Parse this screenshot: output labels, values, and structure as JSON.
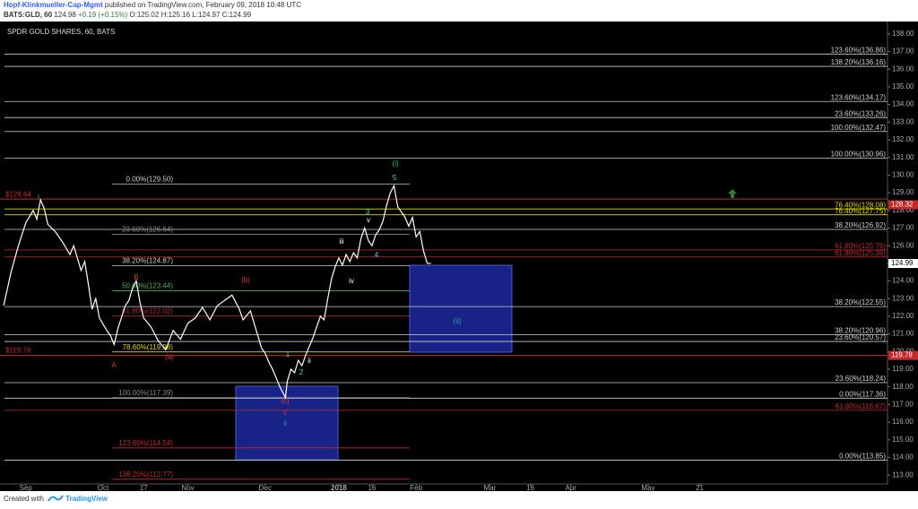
{
  "header": {
    "author": "Hopf-Klinkmueller-Cap-Mgmt",
    "published": "published on TradingView.com, February 09, 2018 10:48 UTC",
    "symbol": "BATS:GLD, 60",
    "last": "124.98",
    "change": "+0.19 (+0.15%)",
    "open": "O:125.02",
    "high": "H:125.16",
    "low": "L:124.97",
    "close": "C:124.99"
  },
  "footer": {
    "created": "Created with",
    "brand": "TradingView"
  },
  "chart_data": {
    "type": "line",
    "title": "SPDR GOLD SHARES, 60, BATS",
    "color": "#ffffff",
    "x": [
      -6,
      -4,
      -2,
      0,
      2,
      3,
      4,
      5,
      6,
      8,
      10,
      12,
      13,
      15,
      16,
      17,
      18,
      19,
      20,
      22,
      23,
      24,
      25,
      27,
      28,
      29,
      30,
      31,
      32,
      34,
      36,
      38,
      40,
      42,
      44,
      46,
      48,
      50,
      52,
      54,
      56,
      58,
      59,
      61,
      63,
      64,
      65,
      66,
      67,
      68,
      69,
      70,
      70.5,
      71,
      72,
      73,
      74,
      75,
      76,
      77,
      78,
      79,
      80,
      81,
      82,
      83,
      84,
      85,
      86,
      87,
      88,
      89,
      90,
      91,
      92,
      93,
      94,
      95,
      96,
      97,
      98,
      99,
      100,
      101,
      102,
      103,
      104,
      105,
      106,
      107,
      108,
      109,
      110
    ],
    "values": [
      122.6,
      124.5,
      126.0,
      127.3,
      128.0,
      127.5,
      128.6,
      128.1,
      127.2,
      126.8,
      126.2,
      125.5,
      126.0,
      124.6,
      125.1,
      123.8,
      122.4,
      123.0,
      121.9,
      121.2,
      120.9,
      120.4,
      121.3,
      122.6,
      122.9,
      123.6,
      124.0,
      122.8,
      121.9,
      121.4,
      120.6,
      120.1,
      121.2,
      120.7,
      121.6,
      121.9,
      122.5,
      121.8,
      122.6,
      122.9,
      123.2,
      122.4,
      121.8,
      122.3,
      120.9,
      120.2,
      119.9,
      119.4,
      119.0,
      118.5,
      118.0,
      117.6,
      117.4,
      118.3,
      119.0,
      118.8,
      119.5,
      119.2,
      119.8,
      120.3,
      120.8,
      121.4,
      122.0,
      121.8,
      123.0,
      124.1,
      124.8,
      125.3,
      124.9,
      125.5,
      125.1,
      125.6,
      125.3,
      126.4,
      127.0,
      126.3,
      126.0,
      126.6,
      126.9,
      127.4,
      128.3,
      129.0,
      129.4,
      128.2,
      127.9,
      127.6,
      127.1,
      127.6,
      126.5,
      126.8,
      125.7,
      125.0,
      124.99
    ],
    "xlim": [
      -7,
      234
    ],
    "xticks": [
      {
        "value": 0,
        "label": "Sep"
      },
      {
        "value": 21,
        "label": "Oct"
      },
      {
        "value": 32,
        "label": "17"
      },
      {
        "value": 44,
        "label": "Nov"
      },
      {
        "value": 65,
        "label": "Dec"
      },
      {
        "value": 85,
        "label": "2018"
      },
      {
        "value": 94,
        "label": "16"
      },
      {
        "value": 106,
        "label": "Feb"
      },
      {
        "value": 126,
        "label": "Mar"
      },
      {
        "value": 137,
        "label": "16"
      },
      {
        "value": 148,
        "label": "Apr"
      },
      {
        "value": 169,
        "label": "May"
      },
      {
        "value": 183,
        "label": "21"
      }
    ],
    "ylim": [
      112.5,
      138.5
    ],
    "yticks": [
      {
        "value": 113,
        "label": "113.00"
      },
      {
        "value": 114,
        "label": "114.00"
      },
      {
        "value": 115,
        "label": "115.00"
      },
      {
        "value": 116,
        "label": "116.00"
      },
      {
        "value": 117,
        "label": "117.00"
      },
      {
        "value": 118,
        "label": "118.00"
      },
      {
        "value": 119,
        "label": "119.00"
      },
      {
        "value": 120,
        "label": "120.00"
      },
      {
        "value": 121,
        "label": "121.00"
      },
      {
        "value": 122,
        "label": "122.00"
      },
      {
        "value": 123,
        "label": "123.00"
      },
      {
        "value": 124,
        "label": "124.00"
      },
      {
        "value": 125,
        "label": "125.00"
      },
      {
        "value": 126,
        "label": "126.00"
      },
      {
        "value": 127,
        "label": "127.00"
      },
      {
        "value": 128,
        "label": "128.00"
      },
      {
        "value": 129,
        "label": "129.00"
      },
      {
        "value": 130,
        "label": "130.00"
      },
      {
        "value": 131,
        "label": "131.00"
      },
      {
        "value": 132,
        "label": "132.00"
      },
      {
        "value": 133,
        "label": "133.00"
      },
      {
        "value": 134,
        "label": "134.00"
      },
      {
        "value": 135,
        "label": "135.00"
      },
      {
        "value": 136,
        "label": "136.00"
      },
      {
        "value": 137,
        "label": "137.00"
      },
      {
        "value": 138,
        "label": "138.00"
      }
    ],
    "levels": [
      {
        "value": 136.86,
        "label": "123.60%(136.86)",
        "color": "#d0d0d0"
      },
      {
        "value": 136.16,
        "label": "138.20%(136.16)",
        "color": "#d0d0d0"
      },
      {
        "value": 134.17,
        "label": "123.60%(134.17)",
        "color": "#d0d0d0"
      },
      {
        "value": 133.26,
        "label": "23.60%(133.26)",
        "color": "#d0d0d0"
      },
      {
        "value": 132.47,
        "label": "100.00%(132.47)",
        "color": "#d0d0d0"
      },
      {
        "value": 130.96,
        "label": "100.00%(130.96)",
        "color": "#d0d0d0"
      },
      {
        "value": 128.08,
        "label": "76.40%(128.08)",
        "color": "#e6d800"
      },
      {
        "value": 127.75,
        "label": "76.40%(127.75)",
        "color": "#e6d800"
      },
      {
        "value": 126.92,
        "label": "38.20%(126.92)",
        "color": "#d0d0d0"
      },
      {
        "value": 125.76,
        "label": "61.80%(125.76)",
        "color": "#c62828"
      },
      {
        "value": 125.36,
        "label": "61.80%(125.36)",
        "color": "#c62828"
      },
      {
        "value": 122.55,
        "label": "38.20%(122.55)",
        "color": "#d0d0d0"
      },
      {
        "value": 120.96,
        "label": "38.20%(120.96)",
        "color": "#d0d0d0"
      },
      {
        "value": 120.57,
        "label": "23.60%(120.57)",
        "color": "#d0d0d0"
      },
      {
        "value": 118.24,
        "label": "23.60%(118.24)",
        "color": "#d0d0d0"
      },
      {
        "value": 117.36,
        "label": "0.00%(117.36)",
        "color": "#d0d0d0"
      },
      {
        "value": 116.67,
        "label": "61.80%(116.67)",
        "color": "#c62828"
      },
      {
        "value": 113.85,
        "label": "0.00%(113.85)",
        "color": "#d0d0d0"
      }
    ],
    "inner_levels": [
      {
        "value": 129.5,
        "label": "0.00%(129.50)",
        "color": "#d0d0d0"
      },
      {
        "value": 126.64,
        "label": "23.60%(126.64)",
        "color": "#888888"
      },
      {
        "value": 124.87,
        "label": "38.20%(124.87)",
        "color": "#d0d0d0"
      },
      {
        "value": 123.44,
        "label": "50.00%(123.44)",
        "color": "#4caf50"
      },
      {
        "value": 122.02,
        "label": "61.80%(122.02)",
        "color": "#c62828"
      },
      {
        "value": 119.98,
        "label": "78.60%(119.98)",
        "color": "#e6d800"
      },
      {
        "value": 117.39,
        "label": "100.00%(117.39)",
        "color": "#888888"
      },
      {
        "value": 114.54,
        "label": "123.60%(114.54)",
        "color": "#c62828"
      },
      {
        "value": 112.77,
        "label": "138.20%(112.77)",
        "color": "#c62828"
      }
    ],
    "price_lines": [
      {
        "value": 128.64,
        "label": "$128.64",
        "color": "#c62828"
      },
      {
        "value": 119.78,
        "label": "$119.78",
        "color": "#c62828"
      }
    ],
    "price_badges": [
      {
        "value": 128.32,
        "color": "#c62828"
      },
      {
        "value": 124.99,
        "color": "#ffffff"
      },
      {
        "value": 119.78,
        "color": "#c62828"
      }
    ],
    "wave_labels": [
      {
        "text": "i",
        "color": "#22c55e"
      },
      {
        "text": "A",
        "color": "#e53935"
      },
      {
        "text": "B",
        "color": "#e53935"
      },
      {
        "text": "(a)",
        "color": "#e53935"
      },
      {
        "text": "(b)",
        "color": "#e53935"
      },
      {
        "text": "(c)",
        "color": "#e53935"
      },
      {
        "text": "c",
        "color": "#e53935"
      },
      {
        "text": "ii",
        "color": "#26a69a"
      },
      {
        "text": "1",
        "color": "#4dd0e1"
      },
      {
        "text": "2",
        "color": "#4dd0e1"
      },
      {
        "text": "ii",
        "color": "#ffffff"
      },
      {
        "text": "iii",
        "color": "#ffffff"
      },
      {
        "text": "iv",
        "color": "#ffffff"
      },
      {
        "text": "3",
        "color": "#4dd0e1"
      },
      {
        "text": "v",
        "color": "#ffffff"
      },
      {
        "text": "4",
        "color": "#4dd0e1"
      },
      {
        "text": "5",
        "color": "#4dd0e1"
      },
      {
        "text": "(i)",
        "color": "#22c55e"
      },
      {
        "text": "(ii)",
        "color": "#26a69a"
      }
    ]
  }
}
